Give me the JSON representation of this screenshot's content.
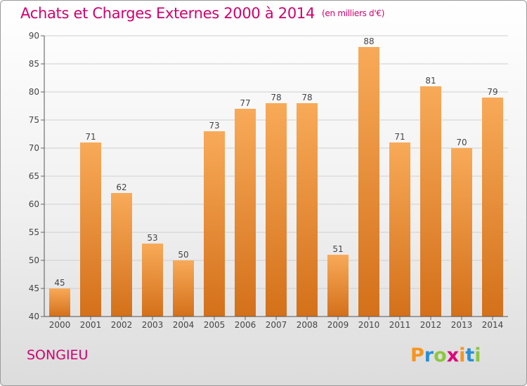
{
  "title": "Achats et Charges Externes 2000 à 2014",
  "unit": "(en milliers d'€)",
  "place": "SONGIEU",
  "logo": {
    "letters": [
      "P",
      "r",
      "o",
      "x",
      "i",
      "t",
      "i"
    ],
    "colors": [
      "#f7941d",
      "#2a8fd4",
      "#8dc63f",
      "#e0007a",
      "#f7941d",
      "#2a8fd4",
      "#8dc63f"
    ]
  },
  "colors": {
    "accent": "#d0006f",
    "bar_top": "#f8aa58",
    "bar_bottom": "#d4701a"
  },
  "chart_data": {
    "type": "bar",
    "categories": [
      "2000",
      "2001",
      "2002",
      "2003",
      "2004",
      "2005",
      "2006",
      "2007",
      "2008",
      "2009",
      "2010",
      "2011",
      "2012",
      "2013",
      "2014"
    ],
    "values": [
      45,
      71,
      62,
      53,
      50,
      73,
      77,
      78,
      78,
      51,
      88,
      71,
      81,
      70,
      79
    ],
    "ylim": [
      40,
      90
    ],
    "yticks": [
      40,
      45,
      50,
      55,
      60,
      65,
      70,
      75,
      80,
      85,
      90
    ],
    "grid": true,
    "data_labels": true
  }
}
